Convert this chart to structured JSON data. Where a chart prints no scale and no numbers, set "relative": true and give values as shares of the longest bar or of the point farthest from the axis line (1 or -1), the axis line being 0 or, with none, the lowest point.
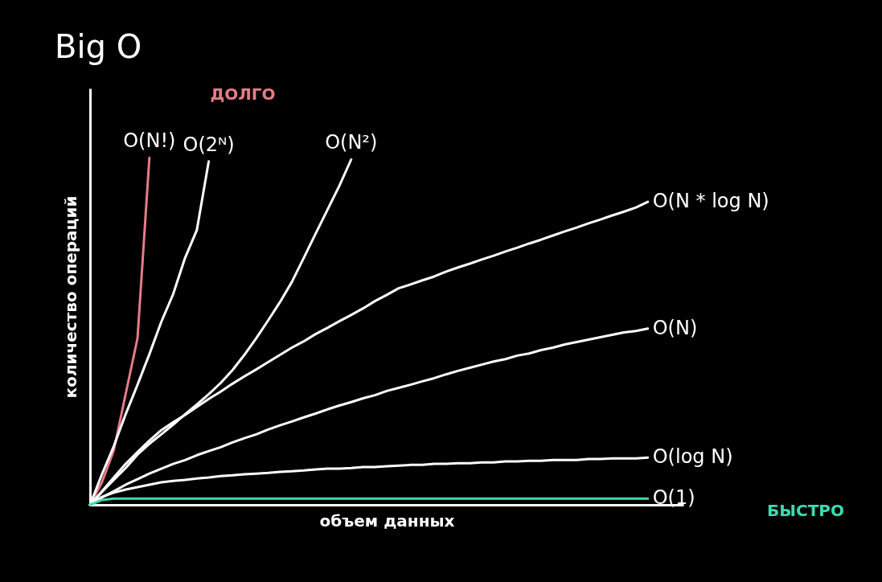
{
  "chart_data": {
    "type": "line",
    "title": "Big O",
    "xlabel": "объем данных",
    "ylabel": "количество операций",
    "relative": true,
    "grid": false,
    "marker": "none",
    "line_style": "solid",
    "categories": [
      null,
      null,
      null,
      null,
      null,
      null,
      null,
      null,
      null,
      null,
      null,
      null,
      null,
      null,
      null,
      null,
      null,
      null,
      null,
      null,
      null,
      null,
      null,
      null,
      null,
      null,
      null,
      null,
      null,
      null,
      null,
      null,
      null,
      null,
      null,
      null,
      null,
      null,
      null,
      null,
      null,
      null,
      null,
      null,
      null,
      null,
      null,
      null
    ],
    "annotations": [
      "ДОЛГО",
      "БЫСТРО"
    ],
    "series": [
      {
        "name": "O(N!)",
        "color": "#e57c87",
        "values": [
          0,
          0.065,
          0.157,
          0.319,
          0.48,
          1,
          null,
          null,
          null,
          null,
          null,
          null,
          null,
          null,
          null,
          null,
          null,
          null,
          null,
          null,
          null,
          null,
          null,
          null,
          null,
          null,
          null,
          null,
          null,
          null,
          null,
          null,
          null,
          null,
          null,
          null,
          null,
          null,
          null,
          null,
          null,
          null,
          null,
          null,
          null,
          null,
          null,
          null
        ]
      },
      {
        "name": "O(2ᴺ)",
        "color": "#ffffff",
        "values": [
          0,
          0.088,
          0.169,
          0.261,
          0.346,
          0.434,
          0.527,
          0.607,
          0.711,
          0.792,
          0.99,
          null,
          null,
          null,
          null,
          null,
          null,
          null,
          null,
          null,
          null,
          null,
          null,
          null,
          null,
          null,
          null,
          null,
          null,
          null,
          null,
          null,
          null,
          null,
          null,
          null,
          null,
          null,
          null,
          null,
          null,
          null,
          null,
          null,
          null,
          null,
          null,
          null
        ]
      },
      {
        "name": "O(N²)",
        "color": "#ffffff",
        "values": [
          0,
          0.037,
          0.072,
          0.106,
          0.145,
          0.176,
          0.203,
          0.231,
          0.261,
          0.289,
          0.319,
          0.351,
          0.388,
          0.432,
          0.48,
          0.531,
          0.584,
          0.642,
          0.711,
          0.781,
          0.85,
          0.919,
          0.995,
          null,
          null,
          null,
          null,
          null,
          null,
          null,
          null,
          null,
          null,
          null,
          null,
          null,
          null,
          null,
          null,
          null,
          null,
          null,
          null,
          null,
          null,
          null,
          null,
          null
        ]
      },
      {
        "name": "O(N * log N)",
        "color": "#ffffff",
        "values": [
          0,
          0.039,
          0.079,
          0.118,
          0.152,
          0.185,
          0.215,
          0.238,
          0.259,
          0.282,
          0.305,
          0.326,
          0.349,
          0.37,
          0.39,
          0.411,
          0.432,
          0.453,
          0.471,
          0.492,
          0.51,
          0.529,
          0.547,
          0.566,
          0.587,
          0.605,
          0.624,
          0.635,
          0.647,
          0.658,
          0.672,
          0.684,
          0.695,
          0.707,
          0.718,
          0.73,
          0.741,
          0.753,
          0.764,
          0.776,
          0.788,
          0.799,
          0.811,
          0.822,
          0.834,
          0.845,
          0.857,
          0.873
        ]
      },
      {
        "name": "O(N)",
        "color": "#ffffff",
        "values": [
          0,
          0.021,
          0.039,
          0.058,
          0.074,
          0.09,
          0.104,
          0.118,
          0.129,
          0.143,
          0.155,
          0.166,
          0.18,
          0.192,
          0.203,
          0.217,
          0.229,
          0.24,
          0.252,
          0.263,
          0.275,
          0.286,
          0.296,
          0.307,
          0.316,
          0.328,
          0.337,
          0.346,
          0.356,
          0.365,
          0.376,
          0.386,
          0.395,
          0.404,
          0.413,
          0.42,
          0.43,
          0.436,
          0.446,
          0.453,
          0.462,
          0.469,
          0.476,
          0.483,
          0.49,
          0.497,
          0.501,
          0.508
        ]
      },
      {
        "name": "O(log N)",
        "color": "#ffffff",
        "values": [
          0,
          0.023,
          0.035,
          0.044,
          0.051,
          0.058,
          0.065,
          0.069,
          0.072,
          0.076,
          0.079,
          0.083,
          0.085,
          0.088,
          0.09,
          0.092,
          0.095,
          0.097,
          0.099,
          0.102,
          0.104,
          0.104,
          0.106,
          0.109,
          0.109,
          0.111,
          0.113,
          0.115,
          0.115,
          0.118,
          0.118,
          0.12,
          0.12,
          0.122,
          0.122,
          0.125,
          0.125,
          0.127,
          0.127,
          0.129,
          0.129,
          0.129,
          0.132,
          0.132,
          0.134,
          0.134,
          0.134,
          0.136
        ]
      },
      {
        "name": "O(1)",
        "color": "#3ddbb0",
        "values": [
          0,
          0.014,
          0.018,
          0.018,
          0.018,
          0.018,
          0.018,
          0.018,
          0.018,
          0.018,
          0.018,
          0.018,
          0.018,
          0.018,
          0.018,
          0.018,
          0.018,
          0.018,
          0.018,
          0.018,
          0.018,
          0.018,
          0.018,
          0.018,
          0.018,
          0.018,
          0.018,
          0.018,
          0.018,
          0.018,
          0.018,
          0.018,
          0.018,
          0.018,
          0.018,
          0.018,
          0.018,
          0.018,
          0.018,
          0.018,
          0.018,
          0.018,
          0.018,
          0.018,
          0.018,
          0.018,
          0.018,
          0.018
        ]
      }
    ]
  }
}
